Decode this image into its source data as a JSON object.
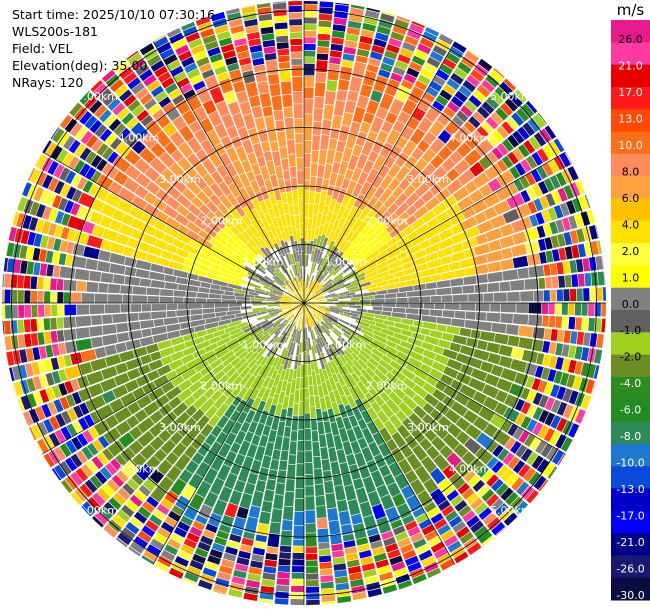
{
  "header": {
    "start_time": "Start time: 2025/10/10 07:30:16",
    "instrument": "WLS200s-181",
    "field": "Field: VEL",
    "elevation": "Elevation(deg): 35.00",
    "nrays": "NRays: 120"
  },
  "chart_data": {
    "type": "heatmap",
    "projection": "ppi-polar",
    "field": "VEL",
    "elevation_deg": 35.0,
    "nrays": 120,
    "range_rings_km": [
      1,
      2,
      3,
      4,
      5
    ],
    "ring_labels": [
      "1.00km",
      "2.00km",
      "3.00km",
      "4.00km",
      "5.00km"
    ],
    "spoke_angles_deg": [
      0,
      30,
      60,
      90,
      120,
      150,
      180,
      210,
      240,
      270,
      300,
      330
    ],
    "colorbar": {
      "unit": "m/s",
      "tick_labels": [
        "26.0",
        "21.0",
        "17.0",
        "13.0",
        "10.0",
        "8.0",
        "6.0",
        "4.0",
        "2.0",
        "1.0",
        "0.0",
        "-1.0",
        "-2.0",
        "-4.0",
        "-6.0",
        "-8.0",
        "-10.0",
        "-13.0",
        "-17.0",
        "-21.0",
        "-26.0",
        "-30.0"
      ],
      "colors": [
        "#e8198a",
        "#ff3aa0",
        "#e60000",
        "#ff1a1a",
        "#ff4a00",
        "#ff6e18",
        "#ff8c5a",
        "#ffa040",
        "#ffc000",
        "#ffe000",
        "#ffff40",
        "#ffff00",
        "#808080",
        "#606060",
        "#a0d020",
        "#6b8e23",
        "#2e8b22",
        "#228b22",
        "#2e8b57",
        "#1f78d0",
        "#0a4ad8",
        "#0000cd",
        "#0000ff",
        "#00008b",
        "#191970",
        "#0b0b40"
      ]
    },
    "description_regions": [
      {
        "sector": "north",
        "velocity_ms": 10.0
      },
      {
        "sector": "northeast",
        "velocity_ms": 6.0
      },
      {
        "sector": "east",
        "velocity_ms": 0.0
      },
      {
        "sector": "southeast",
        "velocity_ms": -2.0
      },
      {
        "sector": "south",
        "velocity_ms": -8.0
      },
      {
        "sector": "southwest",
        "velocity_ms": -2.0
      },
      {
        "sector": "west",
        "velocity_ms": 0.0
      },
      {
        "sector": "northwest",
        "velocity_ms": 4.0
      }
    ]
  }
}
